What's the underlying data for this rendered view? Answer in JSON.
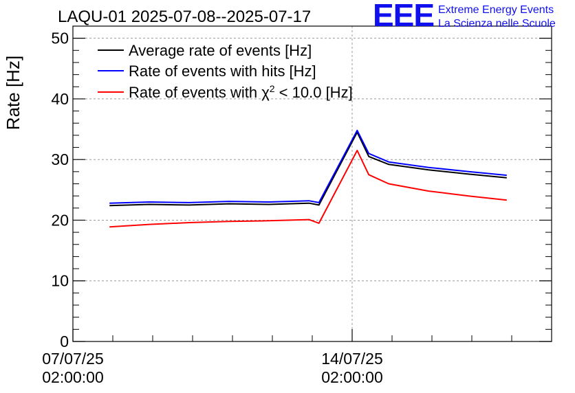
{
  "logo": {
    "mark": "EEE",
    "line1": "Extreme Energy Events",
    "line2": "La Scienza nelle Scuole"
  },
  "chart_data": {
    "type": "line",
    "title": "LAQU-01 2025-07-08--2025-07-17",
    "ylabel": "Rate [Hz]",
    "xlabel": "",
    "ylim": [
      0,
      52
    ],
    "yticks": [
      0,
      10,
      20,
      30,
      40,
      50
    ],
    "xlim": [
      "2025-07-07T02:00:00",
      "2025-07-19T02:00:00"
    ],
    "xticks": [
      {
        "x": "2025-07-07T02:00:00",
        "line1": "07/07/25",
        "line2": "02:00:00"
      },
      {
        "x": "2025-07-14T02:00:00",
        "line1": "14/07/25",
        "line2": "02:00:00"
      }
    ],
    "grid": true,
    "legend_position": "top-left",
    "colors": {
      "black": "#000000",
      "blue": "#0000ff",
      "red": "#ff0000"
    },
    "series": [
      {
        "name": "Average rate of events [Hz]",
        "color": "#000000",
        "x": [
          "2025-07-08T00:00",
          "2025-07-09T00:00",
          "2025-07-10T00:00",
          "2025-07-11T00:00",
          "2025-07-12T00:00",
          "2025-07-13T00:00",
          "2025-07-13T06:00",
          "2025-07-14T05:00",
          "2025-07-14T12:00",
          "2025-07-15T00:00",
          "2025-07-16T00:00",
          "2025-07-17T00:00",
          "2025-07-17T23:00"
        ],
        "y": [
          22.4,
          22.6,
          22.5,
          22.7,
          22.6,
          22.8,
          22.5,
          34.5,
          30.5,
          29.2,
          28.3,
          27.6,
          27.0
        ]
      },
      {
        "name": "Rate of events with hits [Hz]",
        "color": "#0000ff",
        "x": [
          "2025-07-08T00:00",
          "2025-07-09T00:00",
          "2025-07-10T00:00",
          "2025-07-11T00:00",
          "2025-07-12T00:00",
          "2025-07-13T00:00",
          "2025-07-13T06:00",
          "2025-07-14T05:00",
          "2025-07-14T12:00",
          "2025-07-15T00:00",
          "2025-07-16T00:00",
          "2025-07-17T00:00",
          "2025-07-17T23:00"
        ],
        "y": [
          22.8,
          23.0,
          22.9,
          23.1,
          23.0,
          23.2,
          22.9,
          34.8,
          31.0,
          29.6,
          28.7,
          28.0,
          27.4
        ]
      },
      {
        "name": "Rate of events with χ2 < 10.0 [Hz]",
        "name_parts": {
          "pre": "Rate of events with χ",
          "sup": "2",
          "post": " < 10.0 [Hz]"
        },
        "color": "#ff0000",
        "x": [
          "2025-07-08T00:00",
          "2025-07-09T00:00",
          "2025-07-10T00:00",
          "2025-07-11T00:00",
          "2025-07-12T00:00",
          "2025-07-13T00:00",
          "2025-07-13T06:00",
          "2025-07-14T05:00",
          "2025-07-14T12:00",
          "2025-07-15T00:00",
          "2025-07-16T00:00",
          "2025-07-17T00:00",
          "2025-07-17T23:00"
        ],
        "y": [
          18.9,
          19.3,
          19.6,
          19.8,
          19.9,
          20.1,
          19.5,
          31.5,
          27.5,
          26.0,
          24.8,
          24.0,
          23.3
        ]
      }
    ]
  }
}
